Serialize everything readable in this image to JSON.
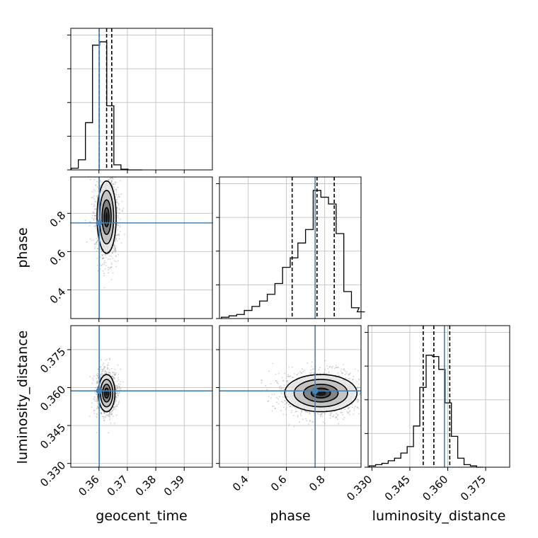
{
  "chart_data": {
    "type": "corner",
    "parameters": [
      "geocent_time",
      "phase",
      "luminosity_distance"
    ],
    "truths": {
      "geocent_time": 0.3601,
      "phase": 0.75,
      "luminosity_distance": 0.3587
    },
    "quantiles": {
      "geocent_time": [
        0.3601,
        0.3627,
        0.3645
      ],
      "phase": [
        0.63,
        0.76,
        0.85
      ],
      "luminosity_distance": [
        0.3503,
        0.3545,
        0.3608
      ]
    },
    "grid": true,
    "panels": [
      {
        "type": "histogram",
        "param": "geocent_time",
        "xlim": [
          0.3501,
          0.3999
        ],
        "ylim": [
          0,
          4.2
        ],
        "bins": [
          0.3515,
          0.354,
          0.3565,
          0.359,
          0.3615,
          0.364,
          0.3665,
          0.369,
          0.3715,
          0.374
        ],
        "values": [
          0.05,
          0.3,
          1.4,
          3.7,
          3.8,
          1.9,
          0.15,
          0.02,
          0.0,
          0.0
        ]
      },
      {
        "type": "histogram",
        "param": "phase",
        "xlim": [
          0.25,
          0.99
        ],
        "ylim": [
          0,
          1.05
        ],
        "bins": [
          0.28,
          0.32,
          0.36,
          0.4,
          0.44,
          0.48,
          0.52,
          0.56,
          0.6,
          0.64,
          0.68,
          0.72,
          0.76,
          0.8,
          0.84,
          0.88,
          0.92,
          0.96,
          0.99
        ],
        "values": [
          0.01,
          0.02,
          0.03,
          0.06,
          0.09,
          0.13,
          0.18,
          0.26,
          0.38,
          0.45,
          0.56,
          0.66,
          0.95,
          0.9,
          0.85,
          0.63,
          0.2,
          0.08,
          0.05
        ]
      },
      {
        "type": "histogram",
        "param": "luminosity_distance",
        "xlim": [
          0.3285,
          0.3845
        ],
        "ylim": [
          0,
          1.1
        ],
        "bins": [
          0.3302,
          0.3327,
          0.3352,
          0.3377,
          0.3402,
          0.3427,
          0.3452,
          0.3477,
          0.3502,
          0.3527,
          0.3552,
          0.3577,
          0.3602,
          0.3627,
          0.3652,
          0.3677,
          0.3702,
          0.3727
        ],
        "values": [
          0.01,
          0.02,
          0.03,
          0.05,
          0.07,
          0.11,
          0.16,
          0.32,
          0.62,
          0.87,
          0.86,
          0.76,
          0.5,
          0.24,
          0.07,
          0.02,
          0.01,
          0.0
        ]
      },
      {
        "type": "density",
        "x": "geocent_time",
        "y": "phase",
        "xlim": [
          0.3501,
          0.3999
        ],
        "ylim": [
          0.25,
          0.99
        ],
        "center": [
          0.3627,
          0.78
        ],
        "spread": [
          0.0016,
          0.09
        ]
      },
      {
        "type": "density",
        "x": "geocent_time",
        "y": "luminosity_distance",
        "xlim": [
          0.3501,
          0.3999
        ],
        "ylim": [
          0.3285,
          0.3845
        ],
        "center": [
          0.3627,
          0.3578
        ],
        "spread": [
          0.0014,
          0.0035
        ]
      },
      {
        "type": "density",
        "x": "phase",
        "y": "luminosity_distance",
        "xlim": [
          0.25,
          0.99
        ],
        "ylim": [
          0.3285,
          0.3845
        ],
        "center": [
          0.78,
          0.3578
        ],
        "spread": [
          0.09,
          0.0035
        ]
      }
    ],
    "ticks": {
      "geocent_time": [
        0.36,
        0.37,
        0.38,
        0.39
      ],
      "phase": [
        0.4,
        0.6,
        0.8
      ],
      "luminosity_distance": [
        0.33,
        0.345,
        0.36,
        0.375
      ]
    },
    "tick_labels": {
      "geocent_time": [
        "0.36",
        "0.37",
        "0.38",
        "0.39"
      ],
      "phase": [
        "0.4",
        "0.6",
        "0.8"
      ],
      "luminosity_distance": [
        "0.330",
        "0.345",
        "0.360",
        "0.375"
      ]
    },
    "xlabels": [
      "geocent_time",
      "phase",
      "luminosity_distance"
    ],
    "ylabels": [
      "phase",
      "luminosity_distance"
    ],
    "colors": {
      "truth": "#4682b4",
      "hist": "#000000",
      "grid": "#c8c8c8"
    }
  }
}
